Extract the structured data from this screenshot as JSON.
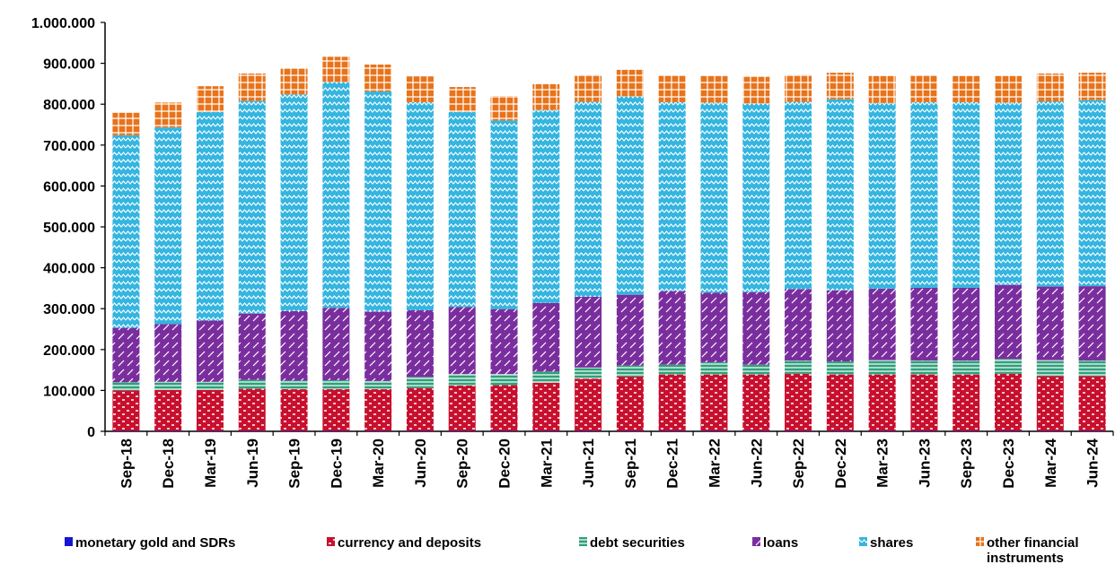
{
  "chart_data": {
    "type": "bar",
    "stacked": true,
    "title": "",
    "xlabel": "",
    "ylabel": "",
    "ylim": [
      0,
      1000000
    ],
    "y_ticks": [
      0,
      100000,
      200000,
      300000,
      400000,
      500000,
      600000,
      700000,
      800000,
      900000,
      1000000
    ],
    "y_tick_labels": [
      "0",
      "100.000",
      "200.000",
      "300.000",
      "400.000",
      "500.000",
      "600.000",
      "700.000",
      "800.000",
      "900.000",
      "1.000.000"
    ],
    "grid": false,
    "legend_position": "bottom",
    "categories": [
      "Sep-18",
      "Dec-18",
      "Mar-19",
      "Jun-19",
      "Sep-19",
      "Dec-19",
      "Mar-20",
      "Jun-20",
      "Sep-20",
      "Dec-20",
      "Mar-21",
      "Jun-21",
      "Sep-21",
      "Dec-21",
      "Mar-22",
      "Jun-22",
      "Sep-22",
      "Dec-22",
      "Mar-23",
      "Jun-23",
      "Sep-23",
      "Dec-23",
      "Mar-24",
      "Jun-24"
    ],
    "series": [
      {
        "name": "monetary gold and SDRs",
        "color": "#1515d6",
        "values": [
          1000,
          1000,
          1000,
          1000,
          1000,
          1000,
          1000,
          1000,
          1000,
          1000,
          1000,
          1000,
          1000,
          1000,
          1000,
          1000,
          1000,
          1000,
          1000,
          1000,
          1000,
          1000,
          1000,
          1000
        ]
      },
      {
        "name": "currency and deposits",
        "color": "#c8102e",
        "values": [
          99000,
          100000,
          100000,
          103000,
          102000,
          102000,
          102000,
          105000,
          111000,
          112000,
          118000,
          128000,
          133000,
          138000,
          138000,
          138000,
          140000,
          138000,
          138000,
          138000,
          138000,
          140000,
          134000,
          134000
        ]
      },
      {
        "name": "debt securities",
        "color": "#2ea07a",
        "values": [
          20000,
          20000,
          20000,
          22000,
          21000,
          22000,
          20000,
          27000,
          28000,
          27000,
          27000,
          27000,
          27000,
          24000,
          30000,
          24000,
          32000,
          32000,
          35000,
          34000,
          34000,
          36000,
          39000,
          38000
        ]
      },
      {
        "name": "loans",
        "color": "#7a2e9e",
        "values": [
          133000,
          141000,
          150000,
          162000,
          170000,
          177000,
          170000,
          163000,
          164000,
          159000,
          168000,
          173000,
          173000,
          180000,
          170000,
          177000,
          175000,
          174000,
          175000,
          178000,
          178000,
          181000,
          180000,
          182000
        ]
      },
      {
        "name": "shares",
        "color": "#35b5e0",
        "values": [
          471000,
          481000,
          510000,
          520000,
          530000,
          552000,
          538000,
          509000,
          477000,
          461000,
          472000,
          477000,
          485000,
          462000,
          465000,
          462000,
          458000,
          467000,
          454000,
          454000,
          454000,
          446000,
          453000,
          455000
        ]
      },
      {
        "name": "other financial instruments",
        "color": "#e8731a",
        "values": [
          55000,
          61000,
          63000,
          67000,
          65000,
          62000,
          66000,
          63000,
          61000,
          60000,
          63000,
          66000,
          65000,
          65000,
          65000,
          65000,
          66000,
          65000,
          66000,
          66000,
          64000,
          65000,
          68000,
          67000
        ]
      }
    ]
  }
}
